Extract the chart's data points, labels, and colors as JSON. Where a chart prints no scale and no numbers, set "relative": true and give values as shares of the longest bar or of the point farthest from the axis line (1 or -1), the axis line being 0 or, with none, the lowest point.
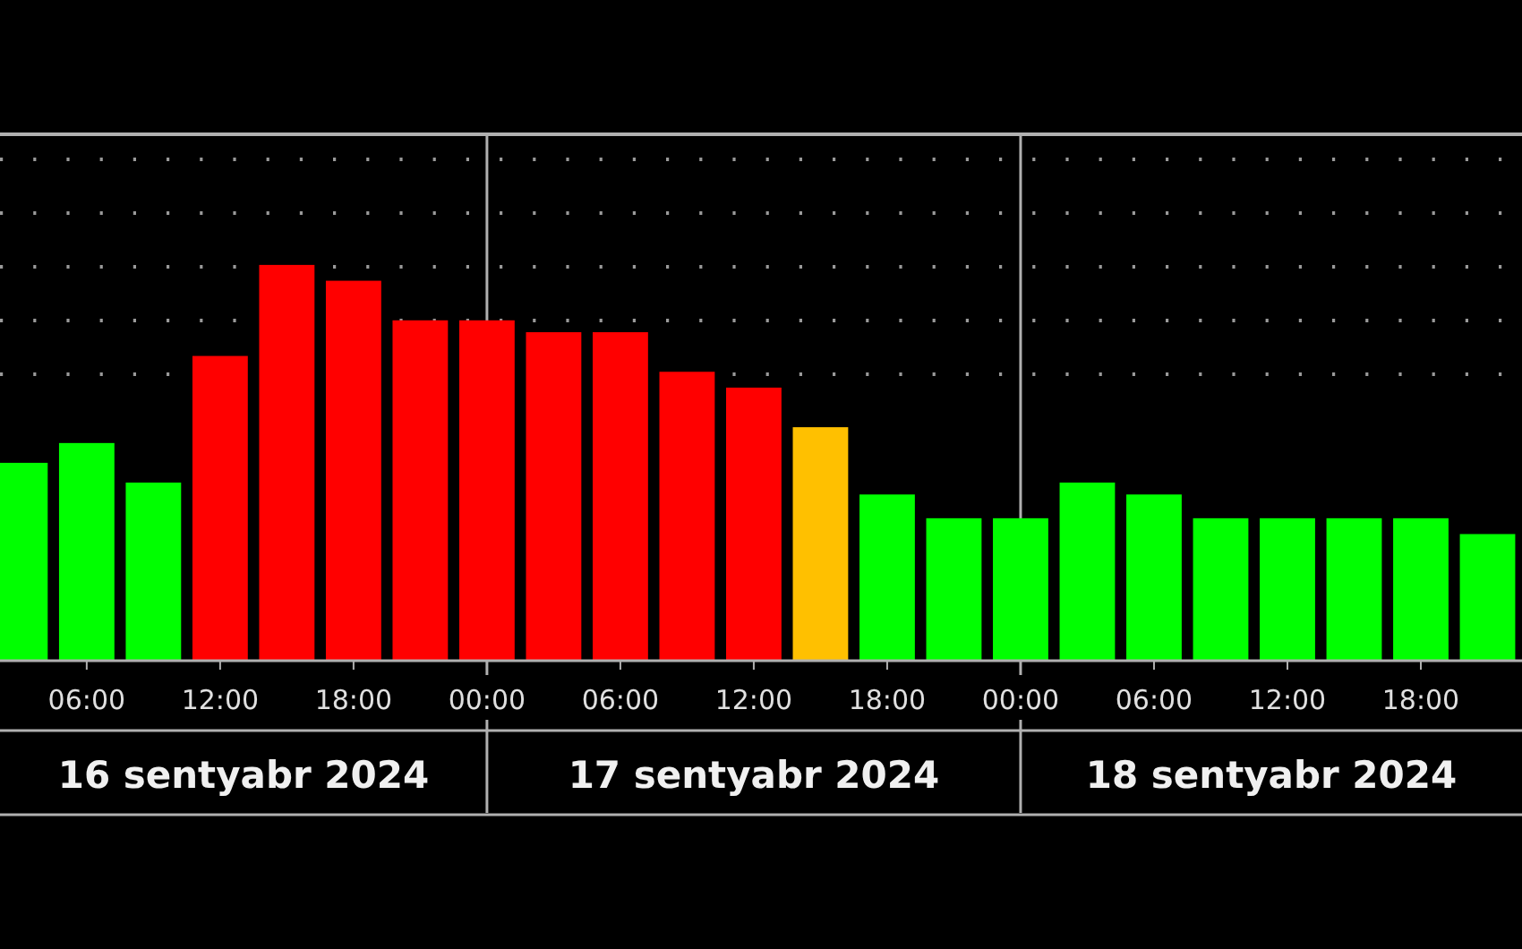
{
  "chart_data": {
    "type": "bar",
    "relative": true,
    "x": [
      "2024-09-16T03:00",
      "2024-09-16T06:00",
      "2024-09-16T09:00",
      "2024-09-16T12:00",
      "2024-09-16T15:00",
      "2024-09-16T18:00",
      "2024-09-16T21:00",
      "2024-09-17T00:00",
      "2024-09-17T03:00",
      "2024-09-17T06:00",
      "2024-09-17T09:00",
      "2024-09-17T12:00",
      "2024-09-17T15:00",
      "2024-09-17T18:00",
      "2024-09-17T21:00",
      "2024-09-18T00:00",
      "2024-09-18T03:00",
      "2024-09-18T06:00",
      "2024-09-18T09:00",
      "2024-09-18T12:00",
      "2024-09-18T15:00",
      "2024-09-18T18:00",
      "2024-09-18T21:00"
    ],
    "values": [
      0.5,
      0.55,
      0.45,
      0.77,
      1,
      0.96,
      0.86,
      0.86,
      0.83,
      0.83,
      0.73,
      0.69,
      0.59,
      0.42,
      0.36,
      0.36,
      0.45,
      0.42,
      0.36,
      0.36,
      0.36,
      0.36,
      0.32
    ],
    "colors": [
      "#00ff00",
      "#00ff00",
      "#00ff00",
      "#ff0000",
      "#ff0000",
      "#ff0000",
      "#ff0000",
      "#ff0000",
      "#ff0000",
      "#ff0000",
      "#ff0000",
      "#ff0000",
      "#ffc000",
      "#00ff00",
      "#00ff00",
      "#00ff00",
      "#00ff00",
      "#00ff00",
      "#00ff00",
      "#00ff00",
      "#00ff00",
      "#00ff00",
      "#00ff00"
    ],
    "xlim": [
      "2024-09-16T02:06",
      "2024-09-18T22:33"
    ],
    "xticks": [
      {
        "value": "2024-09-16T06:00",
        "label": "06:00"
      },
      {
        "value": "2024-09-16T12:00",
        "label": "12:00"
      },
      {
        "value": "2024-09-16T18:00",
        "label": "18:00"
      },
      {
        "value": "2024-09-17T00:00",
        "label": "00:00"
      },
      {
        "value": "2024-09-17T06:00",
        "label": "06:00"
      },
      {
        "value": "2024-09-17T12:00",
        "label": "12:00"
      },
      {
        "value": "2024-09-17T18:00",
        "label": "18:00"
      },
      {
        "value": "2024-09-18T00:00",
        "label": "00:00"
      },
      {
        "value": "2024-09-18T06:00",
        "label": "06:00"
      },
      {
        "value": "2024-09-18T12:00",
        "label": "12:00"
      },
      {
        "value": "2024-09-18T18:00",
        "label": "18:00"
      }
    ],
    "ref_lines": [
      {
        "axis": "x",
        "value": "2024-09-17T00:00",
        "color": "#b0b0b0"
      },
      {
        "axis": "x",
        "value": "2024-09-18T00:00",
        "color": "#b0b0b0"
      }
    ],
    "annotations": [
      "16 sentyabr 2024",
      "17 sentyabr 2024",
      "18 sentyabr 2024"
    ],
    "grid": false
  }
}
